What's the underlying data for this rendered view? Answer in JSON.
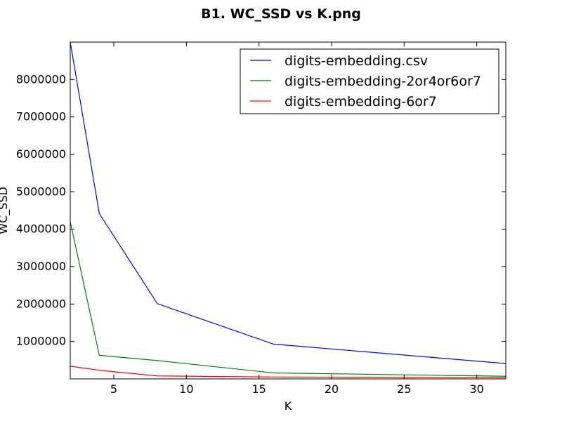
{
  "chart_data": {
    "type": "line",
    "title": "B1. WC_SSD vs K.png",
    "xlabel": "K",
    "ylabel": "WC_SSD",
    "xlim": [
      2,
      32
    ],
    "ylim": [
      0,
      9000000
    ],
    "xticks": [
      5,
      10,
      15,
      20,
      25,
      30
    ],
    "yticks": [
      1000000,
      2000000,
      3000000,
      4000000,
      5000000,
      6000000,
      7000000,
      8000000
    ],
    "grid": false,
    "legend_position": "top-right",
    "x": [
      2,
      4,
      8,
      16,
      32
    ],
    "series": [
      {
        "name": "digits-embedding.csv",
        "color": "#0000ff",
        "values": [
          9000000,
          4420000,
          2010000,
          930000,
          410000
        ]
      },
      {
        "name": "digits-embedding-2or4or6or7",
        "color": "#008000",
        "values": [
          4200000,
          630000,
          490000,
          160000,
          70000
        ]
      },
      {
        "name": "digits-embedding-6or7",
        "color": "#ff0000",
        "values": [
          340000,
          230000,
          80000,
          50000,
          30000
        ]
      }
    ]
  }
}
